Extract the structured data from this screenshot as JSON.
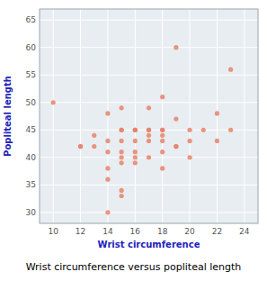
{
  "chart_data": {
    "type": "scatter",
    "title": "Wrist circumference versus popliteal length",
    "xlabel": "Wrist circumference",
    "ylabel": "Popliteal length",
    "x": [
      10,
      12,
      12,
      13,
      13,
      14,
      14,
      14,
      14,
      14,
      14,
      15,
      15,
      15,
      15,
      15,
      15,
      15,
      15,
      15,
      16,
      16,
      16,
      16,
      16,
      16,
      16,
      17,
      17,
      17,
      17,
      17,
      17,
      18,
      18,
      18,
      18,
      18,
      18,
      18,
      19,
      19,
      19,
      19,
      20,
      20,
      20,
      21,
      22,
      22,
      23,
      23
    ],
    "y": [
      50,
      42,
      42,
      44,
      42,
      48,
      43,
      41,
      38,
      36,
      30,
      49,
      45,
      45,
      43,
      41,
      40,
      39,
      33,
      34,
      45,
      45,
      45,
      43,
      41,
      40,
      39,
      49,
      45,
      45,
      44,
      43,
      40,
      51,
      45,
      45,
      44,
      43,
      41,
      38,
      60,
      47,
      42,
      42,
      45,
      43,
      40,
      45,
      48,
      43,
      56,
      45
    ],
    "color": "#e8826a",
    "xlim": [
      9,
      25
    ],
    "ylim": [
      28,
      67
    ],
    "xticks": [
      10,
      12,
      14,
      16,
      18,
      20,
      22,
      24
    ],
    "yticks": [
      30,
      35,
      40,
      45,
      50,
      55,
      60,
      65
    ],
    "grid": true
  }
}
